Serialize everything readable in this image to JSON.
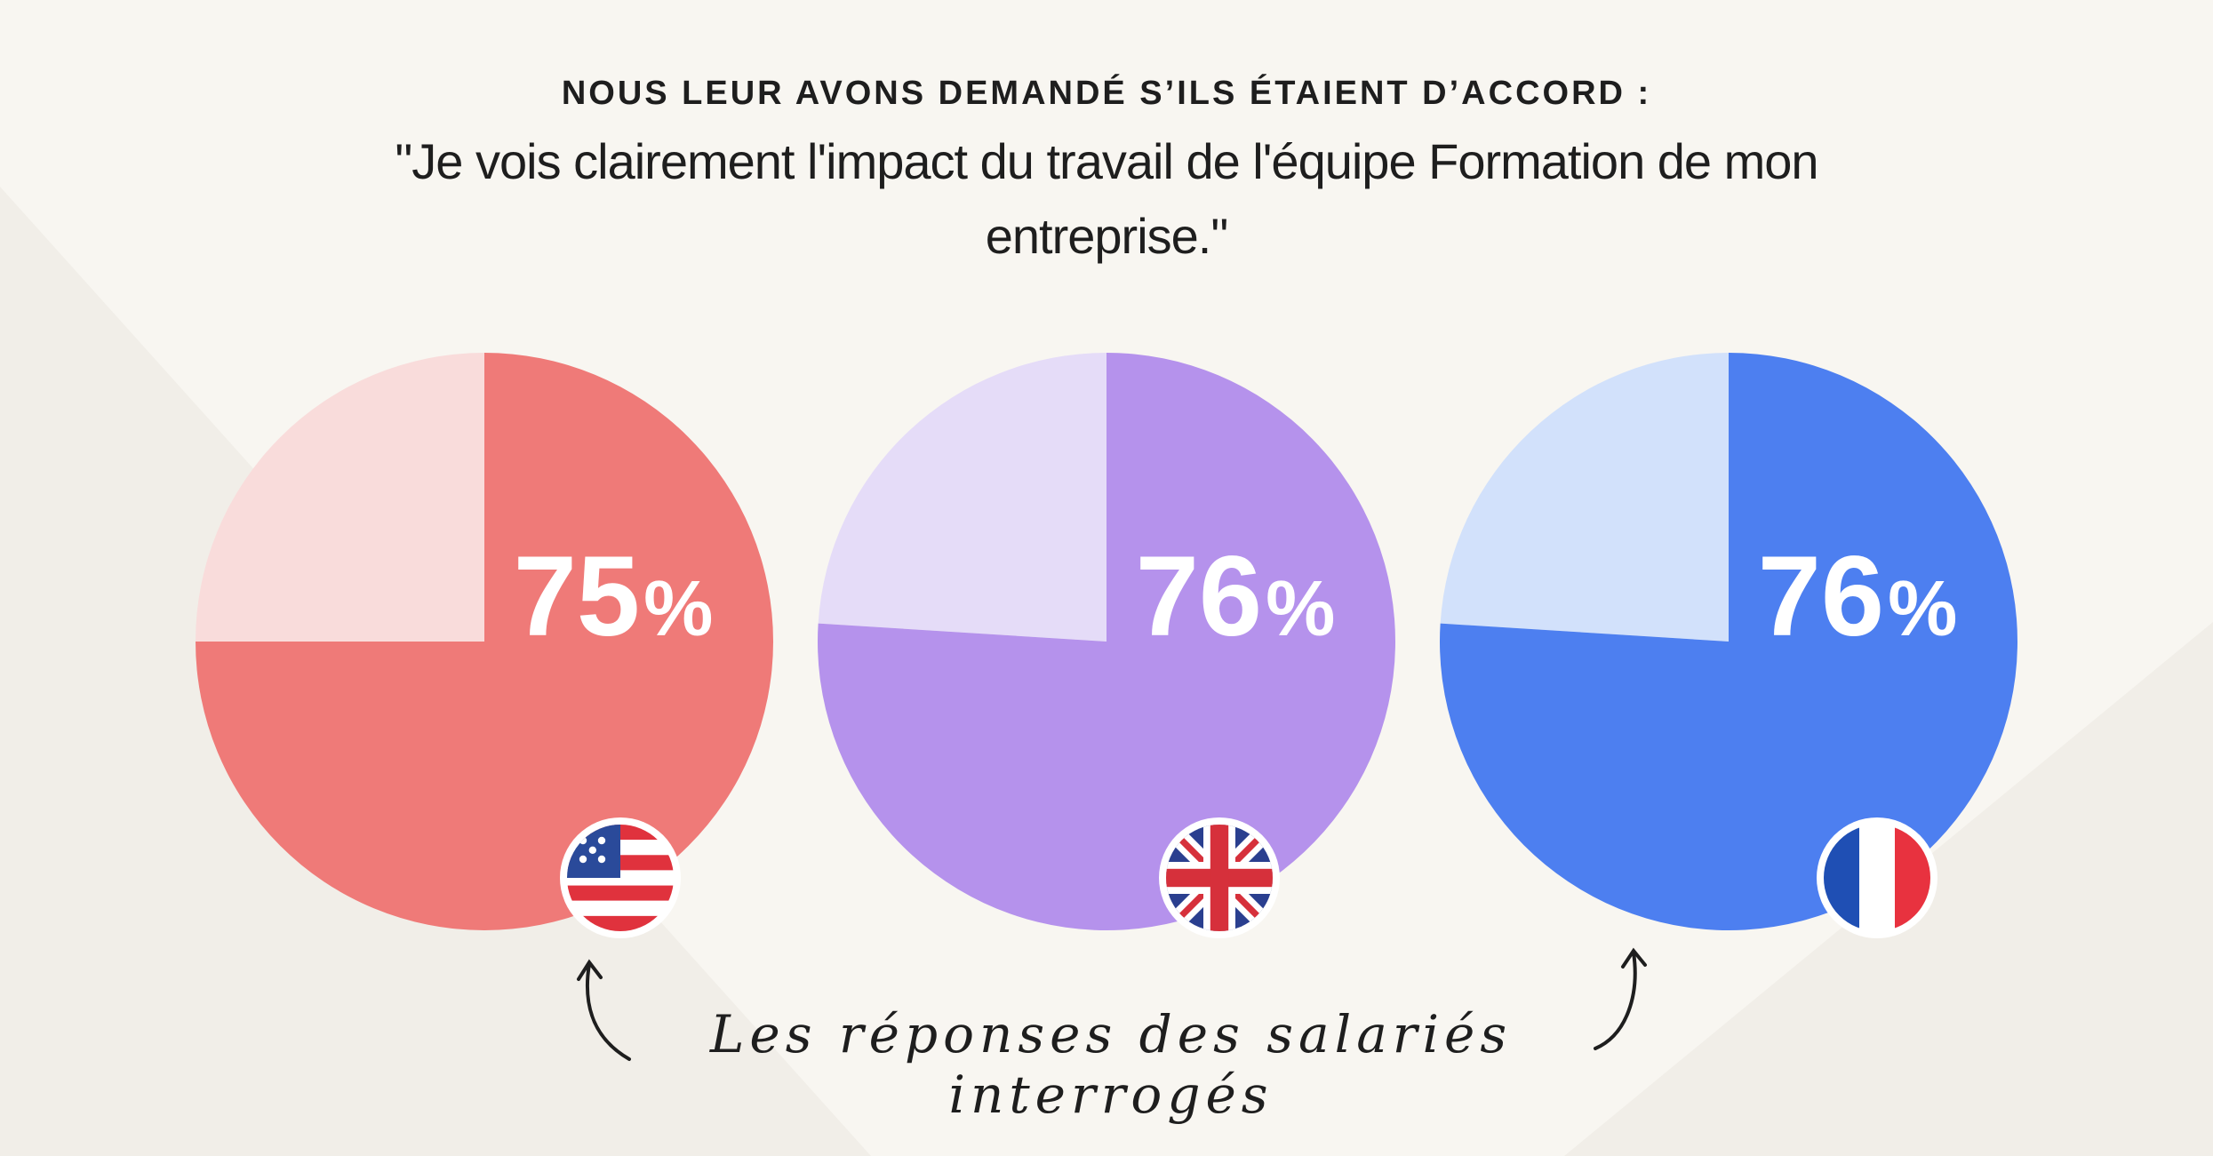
{
  "header": {
    "eyebrow": "NOUS LEUR AVONS DEMANDÉ  S’ILS ÉTAIENT D’ACCORD :",
    "quote": "\"Je vois clairement l'impact du travail de l'équipe Formation de mon entreprise.\""
  },
  "chart_data": {
    "type": "pie",
    "unit": "%",
    "categories": [
      "US",
      "UK",
      "FR"
    ],
    "values": [
      75,
      76,
      76
    ],
    "labels": [
      "75%",
      "76%",
      "76%"
    ],
    "flags": [
      "us-flag-icon",
      "uk-flag-icon",
      "france-flag-icon"
    ],
    "colors": {
      "filled": [
        "#ef7a78",
        "#b592ec",
        "#4d7ff0"
      ],
      "remainder": [
        "#f9dcdb",
        "#e5dcf8",
        "#d2e1fb"
      ]
    }
  },
  "caption": "Les réponses des salariés interrogés"
}
